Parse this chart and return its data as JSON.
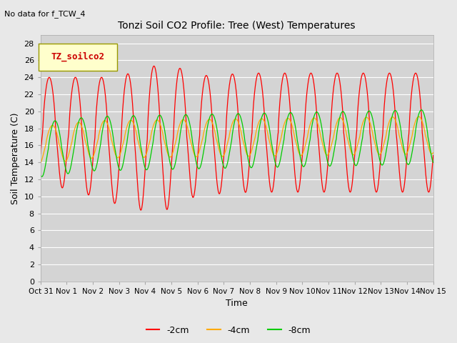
{
  "title": "Tonzi Soil CO2 Profile: Tree (West) Temperatures",
  "no_data_label": "No data for f_TCW_4",
  "ylabel": "Soil Temperature (C)",
  "xlabel": "Time",
  "legend_label": "TZ_soilco2",
  "xlim_days": [
    0,
    15
  ],
  "ylim": [
    0,
    29
  ],
  "yticks": [
    0,
    2,
    4,
    6,
    8,
    10,
    12,
    14,
    16,
    18,
    20,
    22,
    24,
    26,
    28
  ],
  "xtick_labels": [
    "Oct 31",
    "Nov 1",
    "Nov 2",
    "Nov 3",
    "Nov 4",
    "Nov 5",
    "Nov 6",
    "Nov 7",
    "Nov 8",
    "Nov 9",
    "Nov 10",
    "Nov 11",
    "Nov 12",
    "Nov 13",
    "Nov 14",
    "Nov 15"
  ],
  "color_2cm": "#ff0000",
  "color_4cm": "#ffaa00",
  "color_8cm": "#00cc00",
  "bg_color": "#e8e8e8",
  "inner_bg_color": "#d4d4d4",
  "legend_box_color": "#ffffcc",
  "legend_box_edge": "#999900",
  "line_label_2cm": "-2cm",
  "line_label_4cm": "-4cm",
  "line_label_8cm": "-8cm"
}
